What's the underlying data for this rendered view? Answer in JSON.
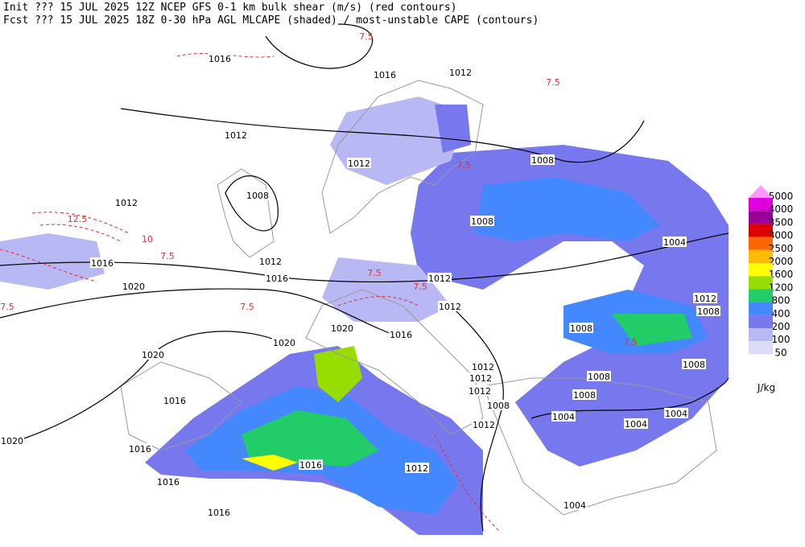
{
  "header": {
    "line1": "Init  ??? 15 JUL 2025 12Z  NCEP GFS 0-1 km bulk shear (m/s) (red contours)",
    "line2": "Fcst ??? 15 JUL 2025 18Z  0-30 hPa AGL MLCAPE (shaded) / most-unstable CAPE (contours)"
  },
  "legend": {
    "levels": [
      "5000",
      "4000",
      "3500",
      "3000",
      "2500",
      "2000",
      "1600",
      "1200",
      "800",
      "400",
      "200",
      "100",
      "50"
    ],
    "colors": [
      "#ff99ff",
      "#dd00dd",
      "#990099",
      "#dd0000",
      "#ff6600",
      "#ffbb00",
      "#ffff00",
      "#99dd00",
      "#22cc66",
      "#4488ff",
      "#7777ee",
      "#b8b8f4",
      "#dcdcfa"
    ],
    "unit": "J/kg"
  },
  "isobar_labels": [
    1016,
    1016,
    1012,
    1012,
    1012,
    1008,
    1012,
    1016,
    1012,
    1016,
    1020,
    1008,
    1008,
    1012,
    1004,
    1012,
    1012,
    1008,
    1008,
    1020,
    1016,
    1020,
    1020,
    1012,
    1012,
    1012,
    1008,
    1008,
    1008,
    1008,
    1004,
    1004,
    1004,
    1012,
    1016,
    1020,
    1016,
    1016,
    1012,
    1016,
    1004,
    1016
  ],
  "shear_labels": [
    "7.5",
    "7.5",
    "7.5",
    "12.5",
    "10",
    "7.5",
    "7.5",
    "7.5",
    "7.5",
    "7.5",
    "7.5"
  ]
}
